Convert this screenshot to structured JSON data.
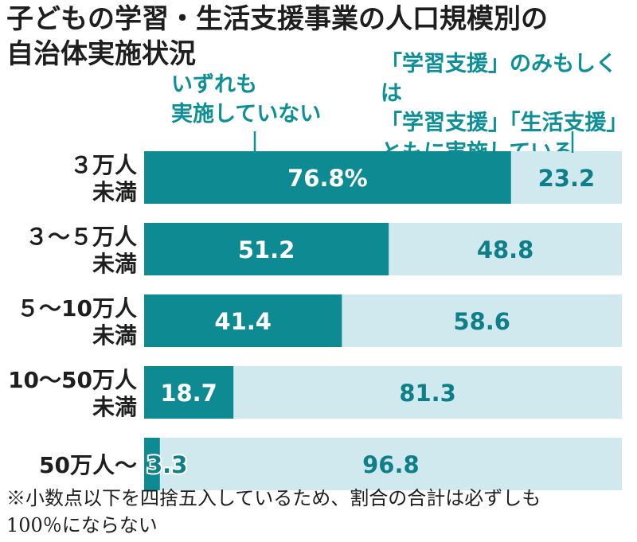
{
  "title_line1": "子どもの学習・生活支援事業の人口規模別の",
  "title_line2": "自治体実施状況",
  "colors": {
    "dark": "#0e8a93",
    "light": "#cfe9ee",
    "dark_label": "#ffffff",
    "light_label": "#0e7f88",
    "legend": "#0d8f98"
  },
  "chart_data": {
    "type": "bar",
    "orientation": "horizontal",
    "stacked": true,
    "xlim": [
      0,
      100
    ],
    "categories": [
      [
        "３万人",
        "未満"
      ],
      [
        "３～５万人",
        "未満"
      ],
      [
        "５～10万人",
        "未満"
      ],
      [
        "10～50万人",
        "未満"
      ],
      [
        "50万人～"
      ]
    ],
    "series": [
      {
        "name_lines": [
          "いずれも",
          "実施していない"
        ],
        "values": [
          76.8,
          51.2,
          41.4,
          18.7,
          3.3
        ],
        "labels": [
          "76.8%",
          "51.2",
          "41.4",
          "18.7",
          "3.3"
        ]
      },
      {
        "name_lines": [
          "「学習支援」のみもしくは",
          "「学習支援」「生活支援」",
          "ともに実施している"
        ],
        "values": [
          23.2,
          48.8,
          58.6,
          81.3,
          96.8
        ],
        "labels": [
          "23.2",
          "48.8",
          "58.6",
          "81.3",
          "96.8"
        ]
      }
    ]
  },
  "note_line1": "※小数点以下を四捨五入しているため、割合の合計は必ずしも",
  "note_line2": "100％にならない"
}
